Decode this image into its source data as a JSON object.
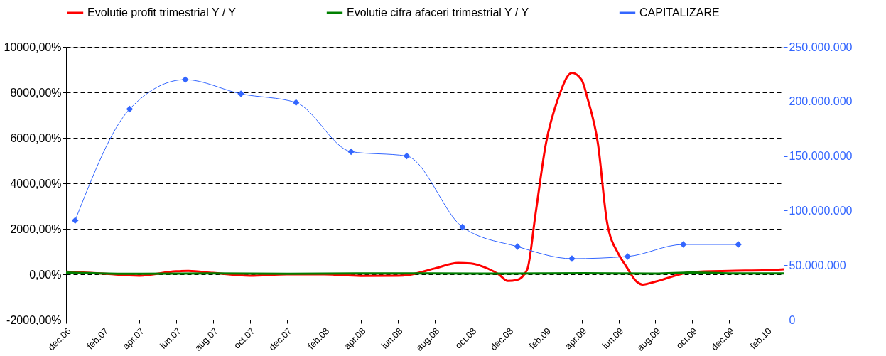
{
  "chart_data": {
    "type": "line",
    "legend": "top",
    "grid": "y",
    "line_style": "solid",
    "xlim": [
      "2006-12-01",
      "2010-03-01"
    ],
    "xticks": [
      {
        "value": "2006-12-01",
        "label": "dec.06"
      },
      {
        "value": "2007-02-01",
        "label": "feb.07"
      },
      {
        "value": "2007-04-01",
        "label": "apr.07"
      },
      {
        "value": "2007-06-01",
        "label": "iun.07"
      },
      {
        "value": "2007-08-01",
        "label": "aug.07"
      },
      {
        "value": "2007-10-01",
        "label": "oct.07"
      },
      {
        "value": "2007-12-01",
        "label": "dec.07"
      },
      {
        "value": "2008-02-01",
        "label": "feb.08"
      },
      {
        "value": "2008-04-01",
        "label": "apr.08"
      },
      {
        "value": "2008-06-01",
        "label": "iun.08"
      },
      {
        "value": "2008-08-01",
        "label": "aug.08"
      },
      {
        "value": "2008-10-01",
        "label": "oct.08"
      },
      {
        "value": "2008-12-01",
        "label": "dec.08"
      },
      {
        "value": "2009-02-01",
        "label": "feb.09"
      },
      {
        "value": "2009-04-01",
        "label": "apr.09"
      },
      {
        "value": "2009-06-01",
        "label": "iun.09"
      },
      {
        "value": "2009-08-01",
        "label": "aug.09"
      },
      {
        "value": "2009-10-01",
        "label": "oct.09"
      },
      {
        "value": "2009-12-01",
        "label": "dec.09"
      },
      {
        "value": "2010-02-01",
        "label": "feb.10"
      }
    ],
    "ylim": [
      -2000,
      10000
    ],
    "yticks": [
      {
        "value": -2000,
        "label": "-2000,00%"
      },
      {
        "value": 0,
        "label": "0,00%"
      },
      {
        "value": 2000,
        "label": "2000,00%"
      },
      {
        "value": 4000,
        "label": "4000,00%"
      },
      {
        "value": 6000,
        "label": "6000,00%"
      },
      {
        "value": 8000,
        "label": "8000,00%"
      },
      {
        "value": 10000,
        "label": "10000,00%"
      }
    ],
    "y2lim": [
      0,
      250000000
    ],
    "y2ticks": [
      {
        "value": 0,
        "label": "0"
      },
      {
        "value": 50000000,
        "label": "50.000.000"
      },
      {
        "value": 100000000,
        "label": "100.000.000"
      },
      {
        "value": 150000000,
        "label": "150.000.000"
      },
      {
        "value": 200000000,
        "label": "200.000.000"
      },
      {
        "value": 250000000,
        "label": "250.000.000"
      }
    ],
    "series": [
      {
        "name": "Evolutie profit trimestrial Y / Y",
        "color": "#ff0000",
        "marker": "none",
        "x": [
          "2006-12-01",
          "2007-02-01",
          "2007-04-01",
          "2007-06-01",
          "2007-06-21",
          "2007-08-01",
          "2007-10-01",
          "2007-12-01",
          "2008-02-01",
          "2008-04-01",
          "2008-06-01",
          "2008-06-20",
          "2008-08-01",
          "2008-09-09",
          "2008-09-30",
          "2008-10-28",
          "2008-11-15",
          "2008-11-30",
          "2008-12-15",
          "2009-01-01",
          "2009-01-15",
          "2009-02-01",
          "2009-02-21",
          "2009-03-16",
          "2009-04-01",
          "2009-04-11",
          "2009-04-28",
          "2009-05-13",
          "2009-06-01",
          "2009-06-13",
          "2009-07-01",
          "2009-07-11",
          "2009-08-01",
          "2009-10-01",
          "2009-12-01",
          "2010-02-01",
          "2010-03-01"
        ],
        "values": [
          120,
          30,
          -60,
          130,
          150,
          60,
          -60,
          0,
          0,
          -70,
          -60,
          -20,
          255,
          500,
          480,
          250,
          0,
          -290,
          -250,
          200,
          2680,
          5740,
          7716,
          8860,
          8550,
          7716,
          5740,
          2300,
          890,
          380,
          -320,
          -450,
          -320,
          100,
          150,
          180,
          220
        ]
      },
      {
        "name": "Evolutie cifra afaceri trimestrial Y / Y",
        "color": "#008000",
        "marker": "none",
        "x": [
          "2006-12-01",
          "2007-04-01",
          "2007-08-01",
          "2007-12-01",
          "2008-04-01",
          "2008-08-01",
          "2008-12-01",
          "2009-04-01",
          "2009-08-01",
          "2009-10-01",
          "2009-12-01",
          "2010-03-01"
        ],
        "values": [
          80,
          20,
          40,
          20,
          40,
          40,
          30,
          50,
          30,
          80,
          40,
          40
        ]
      },
      {
        "name": "CAPITALIZARE",
        "color": "#3366ff",
        "marker": "diamond",
        "axis": "y2",
        "x": [
          "2006-12-16",
          "2007-03-16",
          "2007-06-16",
          "2007-09-16",
          "2007-12-16",
          "2008-03-16",
          "2008-06-16",
          "2008-09-16",
          "2008-12-16",
          "2009-03-16",
          "2009-06-16",
          "2009-09-16",
          "2009-12-16"
        ],
        "values": [
          91000000,
          193000000,
          220000000,
          207000000,
          199000000,
          154000000,
          150000000,
          85000000,
          67000000,
          56000000,
          58000000,
          69000000,
          69000000
        ]
      }
    ]
  }
}
